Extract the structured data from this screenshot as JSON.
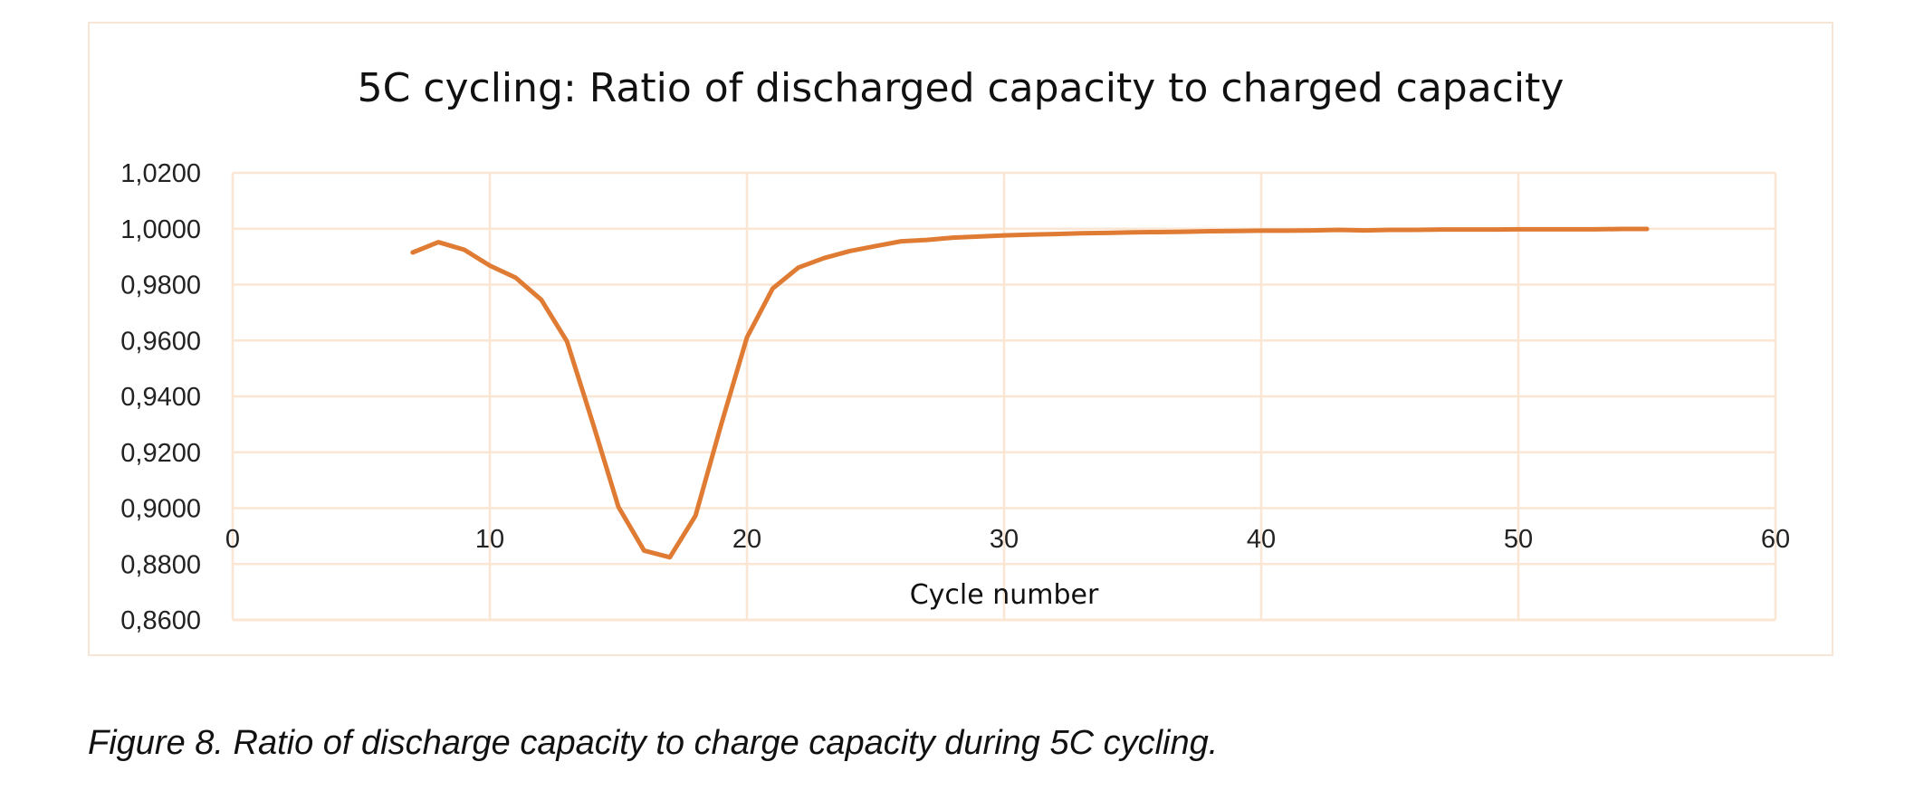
{
  "chart_data": {
    "type": "line",
    "title": "5C cycling: Ratio of discharged capacity to charged capacity",
    "xlabel": "Cycle number",
    "ylabel": "",
    "xlim": [
      0,
      60
    ],
    "ylim": [
      0.86,
      1.02
    ],
    "xticks": [
      "0",
      "10",
      "20",
      "30",
      "40",
      "50",
      "60"
    ],
    "yticks": [
      "0,8600",
      "0,8800",
      "0,9000",
      "0,9200",
      "0,9400",
      "0,9600",
      "0,9800",
      "1,0000",
      "1,0200"
    ],
    "grid": true,
    "legend": "none",
    "line_color": "#e07b34",
    "grid_color": "#fbe5d3",
    "series": [
      {
        "x": [
          7,
          8,
          9,
          10,
          11,
          12,
          13,
          14,
          15,
          16,
          17,
          18,
          19,
          20,
          21,
          22,
          23,
          24,
          25,
          26,
          27,
          28,
          29,
          30,
          31,
          32,
          33,
          34,
          35,
          36,
          37,
          38,
          39,
          40,
          41,
          42,
          43,
          44,
          45,
          46,
          47,
          48,
          49,
          50,
          51,
          52,
          53,
          54,
          55
        ],
        "y": [
          0.9915,
          0.9952,
          0.9925,
          0.9868,
          0.9825,
          0.9746,
          0.9597,
          0.9306,
          0.9005,
          0.8848,
          0.8824,
          0.8973,
          0.93,
          0.9611,
          0.9786,
          0.9861,
          0.9895,
          0.992,
          0.9938,
          0.9955,
          0.996,
          0.9968,
          0.9972,
          0.9976,
          0.9979,
          0.9981,
          0.9984,
          0.9985,
          0.9987,
          0.9988,
          0.9989,
          0.9991,
          0.9992,
          0.9993,
          0.9993,
          0.9994,
          0.9996,
          0.9994,
          0.9996,
          0.9996,
          0.9997,
          0.9997,
          0.9997,
          0.9998,
          0.9998,
          0.9998,
          0.9998,
          0.9999,
          0.9999
        ]
      }
    ]
  },
  "caption": "Figure 8. Ratio of discharge capacity to charge capacity during 5C cycling."
}
